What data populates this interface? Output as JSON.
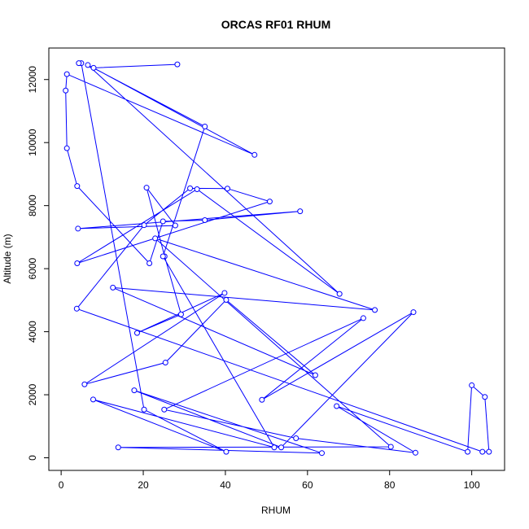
{
  "chart_data": {
    "type": "line",
    "title": "ORCAS RF01 RHUM",
    "xlabel": "RHUM",
    "ylabel": "Altitude (m)",
    "xlim": [
      -3,
      108
    ],
    "ylim": [
      -400,
      13000
    ],
    "xticks": [
      "0",
      "20",
      "40",
      "60",
      "80",
      "100"
    ],
    "xtick_values": [
      0,
      20,
      40,
      60,
      80,
      100
    ],
    "yticks": [
      "0",
      "2000",
      "4000",
      "6000",
      "8000",
      "10000",
      "12000"
    ],
    "ytick_values": [
      0,
      2000,
      4000,
      6000,
      8000,
      10000,
      12000
    ],
    "grid": false,
    "line_color": "#0000ff",
    "marker": "open-circle",
    "series": [
      {
        "x": [
          28.3,
          7.9,
          47.1,
          1.4,
          1.1,
          1.4,
          3.9,
          21.5,
          24.8,
          35.0,
          58.2,
          4.1,
          27.8,
          20.8,
          25.2,
          29.2,
          18.5,
          39.8,
          5.7,
          25.4,
          40.2,
          61.9,
          12.6,
          76.4,
          22.9,
          80.3,
          13.9,
          63.5,
          17.8,
          53.6,
          85.8,
          48.9,
          73.6,
          25.1,
          57.2,
          86.3,
          67.1,
          99.0,
          100.0,
          103.2,
          104.2,
          102.6,
          3.8,
          20.2,
          31.4,
          40.5,
          50.8,
          3.9,
          33.1,
          67.8,
          6.5,
          35.0,
          24.8,
          51.9,
          7.8,
          40.2,
          20.2,
          4.9,
          4.3
        ],
        "y": [
          12480,
          12370,
          9610,
          12170,
          11650,
          9820,
          8620,
          6170,
          7500,
          7540,
          7820,
          7270,
          7370,
          8570,
          6390,
          4550,
          3960,
          5230,
          2330,
          3020,
          5010,
          2620,
          5400,
          4690,
          6960,
          350,
          330,
          150,
          2140,
          330,
          4620,
          1840,
          4430,
          1530,
          620,
          160,
          1640,
          190,
          2300,
          1930,
          190,
          190,
          4730,
          7380,
          8550,
          8540,
          8130,
          6170,
          8520,
          5200,
          12460,
          10510,
          6390,
          330,
          1850,
          190,
          1530,
          12520,
          12520
        ]
      }
    ]
  }
}
